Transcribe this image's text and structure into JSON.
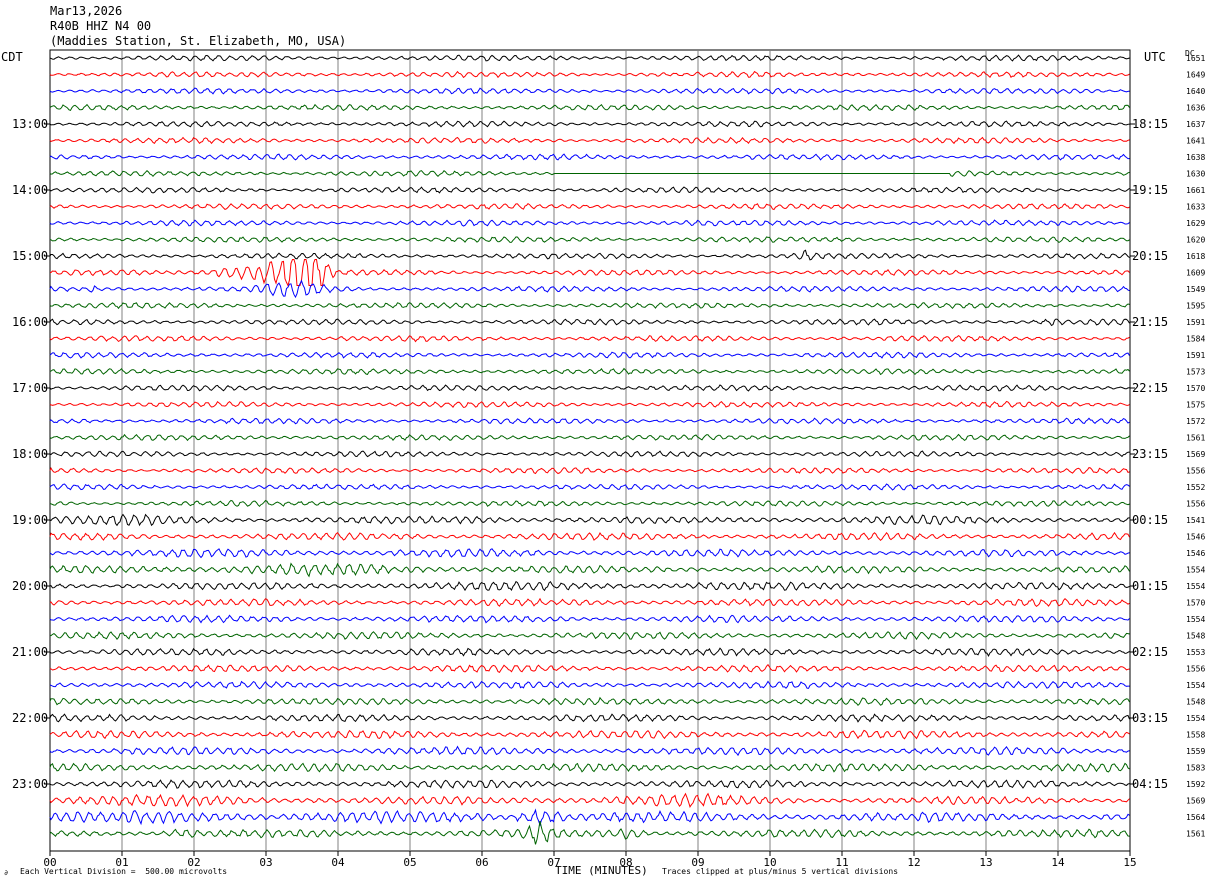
{
  "header": {
    "date": "Mar13,2026",
    "channel": "R40B HHZ N4 00",
    "station": "(Maddies Station, St. Elizabeth, MO, USA)"
  },
  "left_tz": "CDT",
  "right_tz": "UTC",
  "dc_label": "DC",
  "footer": {
    "scale_note": "Each Vertical Division =  500.00 microvolts",
    "xlabel": "TIME (MINUTES)",
    "clip_note": "Traces clipped at plus/minus 5 vertical divisions",
    "corner_mark": "∂"
  },
  "colors": {
    "black": "#000000",
    "red": "#ff0000",
    "blue": "#0000ff",
    "green": "#006400",
    "grid": "#808080"
  },
  "chart_data": {
    "type": "line",
    "title": "",
    "xlabel": "TIME (MINUTES)",
    "x_ticks": [
      "00",
      "01",
      "02",
      "03",
      "04",
      "05",
      "06",
      "07",
      "08",
      "09",
      "10",
      "11",
      "12",
      "13",
      "14",
      "15"
    ],
    "xlim": [
      0,
      15
    ],
    "trace_interval_minutes": 15,
    "trace_color_cycle": [
      "black",
      "red",
      "blue",
      "green"
    ],
    "left_hour_labels": [
      "13:00",
      "14:00",
      "15:00",
      "16:00",
      "17:00",
      "18:00",
      "19:00",
      "20:00",
      "21:00",
      "22:00",
      "23:00"
    ],
    "right_hour_labels": [
      "18:15",
      "19:15",
      "20:15",
      "21:15",
      "22:15",
      "23:15",
      "00:15",
      "01:15",
      "02:15",
      "03:15",
      "04:15"
    ],
    "dc_offsets": [
      1651,
      1649,
      1640,
      1636,
      1637,
      1641,
      1638,
      1630,
      1661,
      1633,
      1629,
      1620,
      1618,
      1609,
      1549,
      1595,
      1591,
      1584,
      1591,
      1573,
      1570,
      1575,
      1572,
      1561,
      1569,
      1556,
      1552,
      1556,
      1541,
      1546,
      1546,
      1554,
      1554,
      1570,
      1554,
      1548,
      1553,
      1556,
      1554,
      1548,
      1554,
      1558,
      1559,
      1583,
      1592,
      1569,
      1564,
      1561
    ]
  }
}
